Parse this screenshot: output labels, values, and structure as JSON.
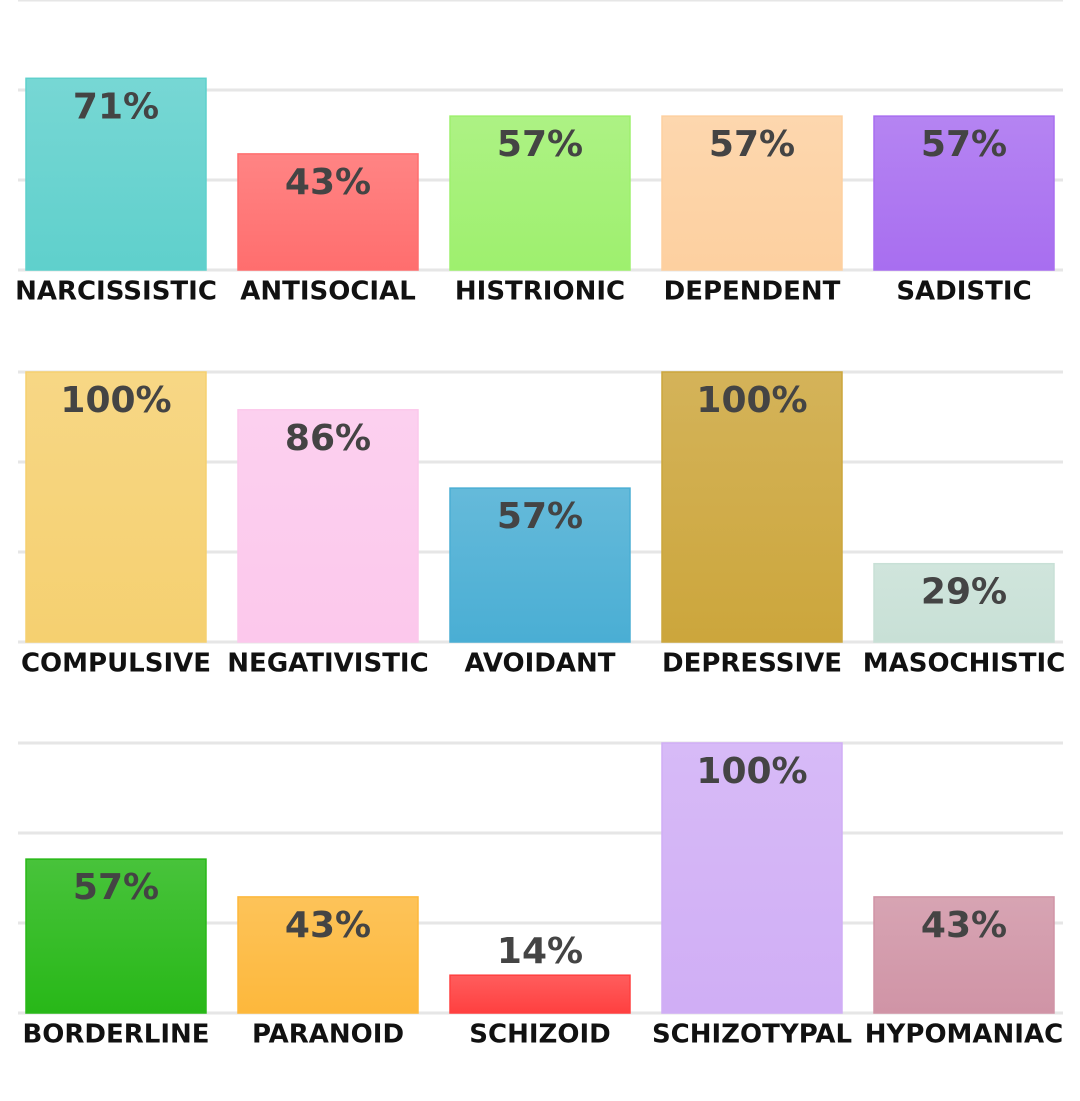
{
  "chart_data": [
    {
      "type": "bar",
      "categories": [
        "NARCISSISTIC",
        "ANTISOCIAL",
        "HISTRIONIC",
        "DEPENDENT",
        "SADISTIC"
      ],
      "values": [
        71,
        43,
        57,
        57,
        57
      ],
      "value_labels": [
        "71%",
        "43%",
        "57%",
        "57%",
        "57%"
      ],
      "colors": [
        "#5fd0cc",
        "#ff6e6e",
        "#9ef06e",
        "#fdd0a0",
        "#a86ef0"
      ],
      "ylim": [
        0,
        100
      ],
      "yticks": [
        0,
        33.33,
        66.67,
        100
      ],
      "grid": true
    },
    {
      "type": "bar",
      "categories": [
        "COMPULSIVE",
        "NEGATIVISTIC",
        "AVOIDANT",
        "DEPRESSIVE",
        "MASOCHISTIC"
      ],
      "values": [
        100,
        86,
        57,
        100,
        29
      ],
      "value_labels": [
        "100%",
        "86%",
        "57%",
        "100%",
        "29%"
      ],
      "colors": [
        "#f5d070",
        "#fcc8ec",
        "#4aaed4",
        "#cca63c",
        "#c8e0d6"
      ],
      "ylim": [
        0,
        100
      ],
      "yticks": [
        0,
        33.33,
        66.67,
        100
      ],
      "grid": true
    },
    {
      "type": "bar",
      "categories": [
        "BORDERLINE",
        "PARANOID",
        "SCHIZOID",
        "SCHIZOTYPAL",
        "HYPOMANIAC"
      ],
      "values": [
        57,
        43,
        14,
        100,
        43
      ],
      "value_labels": [
        "57%",
        "43%",
        "14%",
        "100%",
        "43%"
      ],
      "colors": [
        "#28b818",
        "#fdb83c",
        "#ff4040",
        "#d0aef5",
        "#d094a6"
      ],
      "ylim": [
        0,
        100
      ],
      "yticks": [
        0,
        33.33,
        66.67,
        100
      ],
      "grid": true
    }
  ]
}
